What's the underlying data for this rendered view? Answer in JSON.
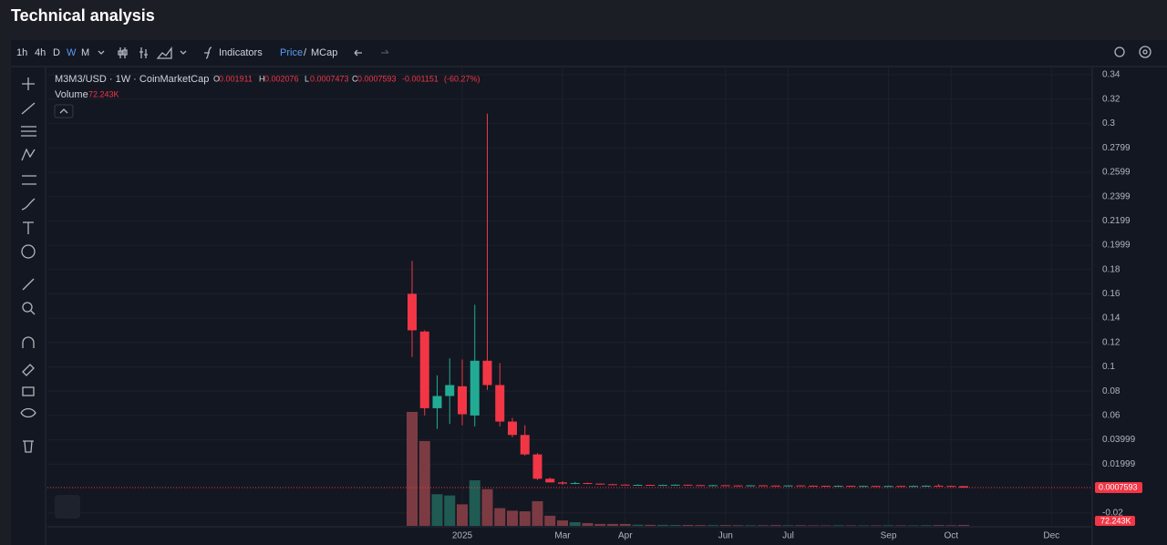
{
  "page_title": "Technical analysis",
  "toolbar": {
    "timeframes": [
      "1h",
      "4h",
      "D",
      "W",
      "M"
    ],
    "active_timeframe": 3,
    "indicators": "Indicators",
    "price": "Price",
    "separator": "/",
    "mcap": "MCap"
  },
  "chart_data": {
    "type": "candlestick",
    "symbol": "M3M3/USD · 1W · CoinMarketCap",
    "ohlc_labels": [
      "O",
      "H",
      "L",
      "C"
    ],
    "change": -0.001151,
    "change_pct": {
      "value": -60.27,
      "label": "(-60.27%)"
    },
    "volume_name": "Volume",
    "up_color": "#22ab94",
    "down_color": "#f23645",
    "volume_up_color": "#1f5b52",
    "volume_down_color": "#7c3b43",
    "categories": [
      null,
      null,
      null,
      null,
      "2025",
      null,
      null,
      null,
      null,
      null,
      null,
      null,
      "Mar",
      null,
      null,
      null,
      null,
      "Apr",
      null,
      null,
      null,
      null,
      null,
      null,
      null,
      "Jun",
      null,
      null,
      null,
      null,
      "Jul",
      null,
      null,
      null,
      null,
      null,
      null,
      null,
      "Sep",
      null,
      null,
      null,
      null,
      "Oct",
      null,
      null,
      null,
      null,
      null,
      null,
      null,
      "Dec",
      null,
      null
    ],
    "open": [
      0.16,
      0.129,
      0.066,
      0.076,
      0.084,
      0.06,
      0.105,
      0.085,
      0.055,
      0.044,
      0.028,
      0.008,
      0.005,
      0.004,
      0.0045,
      0.004,
      0.0035,
      0.0032,
      0.0028,
      0.003,
      0.0027,
      0.0029,
      0.0031,
      0.0028,
      0.0026,
      0.0027,
      0.0025,
      0.0024,
      0.0026,
      0.0024,
      0.0023,
      0.0025,
      0.0023,
      0.0022,
      0.0021,
      0.0022,
      0.002,
      0.0021,
      0.0019,
      0.0021,
      0.0019,
      0.0021,
      0.0023,
      0.0021,
      0.001911,
      null,
      null,
      null,
      null,
      null,
      null,
      null,
      null,
      null
    ],
    "high": [
      0.187,
      0.13,
      0.093,
      0.107,
      0.106,
      0.151,
      0.308,
      0.103,
      0.058,
      0.052,
      0.029,
      0.009,
      0.006,
      0.0055,
      0.0048,
      0.0042,
      0.0038,
      0.0034,
      0.0033,
      0.0031,
      0.0032,
      0.0034,
      0.0032,
      0.0029,
      0.003,
      0.0028,
      0.0027,
      0.0028,
      0.0027,
      0.0025,
      0.0027,
      0.0026,
      0.0024,
      0.0023,
      0.0024,
      0.0023,
      0.0023,
      0.0022,
      0.0023,
      0.0022,
      0.0024,
      0.0026,
      0.0035,
      0.0024,
      0.002076,
      null,
      null,
      null,
      null,
      null,
      null,
      null,
      null,
      null
    ],
    "low": [
      0.108,
      0.06,
      0.049,
      0.053,
      0.052,
      0.051,
      0.081,
      0.051,
      0.042,
      0.027,
      0.007,
      0.005,
      0.003,
      0.0035,
      0.0036,
      0.0032,
      0.003,
      0.0026,
      0.0026,
      0.0025,
      0.0025,
      0.0027,
      0.0026,
      0.0024,
      0.0024,
      0.0023,
      0.0022,
      0.0022,
      0.0022,
      0.0021,
      0.0021,
      0.0021,
      0.002,
      0.0019,
      0.0019,
      0.0018,
      0.0018,
      0.0017,
      0.0018,
      0.0018,
      0.0018,
      0.002,
      0.002,
      0.0018,
      0.0007473,
      null,
      null,
      null,
      null,
      null,
      null,
      null,
      null,
      null
    ],
    "close": [
      0.13,
      0.066,
      0.076,
      0.085,
      0.061,
      0.105,
      0.085,
      0.055,
      0.044,
      0.028,
      0.008,
      0.005,
      0.004,
      0.0045,
      0.004,
      0.0035,
      0.0032,
      0.0028,
      0.003,
      0.0027,
      0.0029,
      0.0031,
      0.0028,
      0.0026,
      0.0027,
      0.0025,
      0.0024,
      0.0026,
      0.0024,
      0.0023,
      0.0025,
      0.0023,
      0.0022,
      0.0021,
      0.0022,
      0.002,
      0.0021,
      0.0019,
      0.0021,
      0.0019,
      0.0021,
      0.0023,
      0.0021,
      0.001911,
      0.0007593,
      null,
      null,
      null,
      null,
      null,
      null,
      null,
      null,
      null
    ],
    "volume": [
      9000000,
      6700000,
      2500000,
      2400000,
      1700000,
      3600000,
      2900000,
      1400000,
      1200000,
      1150000,
      1950000,
      800000,
      430000,
      290000,
      220000,
      150000,
      150000,
      150000,
      90000,
      80000,
      80000,
      70000,
      70000,
      60000,
      60000,
      60000,
      50000,
      50000,
      50000,
      60000,
      50000,
      50000,
      40000,
      40000,
      50000,
      40000,
      40000,
      40000,
      50000,
      40000,
      40000,
      50000,
      60000,
      50000,
      72243,
      null,
      null,
      null,
      null,
      null,
      null,
      null,
      null,
      null
    ],
    "volume_labels": [
      null,
      null,
      null,
      null,
      null,
      null,
      null,
      null,
      null,
      null,
      null,
      null,
      null,
      null,
      null,
      null,
      null,
      null,
      null,
      null,
      null,
      null,
      null,
      null,
      null,
      null,
      null,
      null,
      null,
      null,
      null,
      null,
      null,
      null,
      null,
      null,
      null,
      null,
      null,
      null,
      null,
      null,
      null,
      null,
      "72.243K",
      null,
      null,
      null,
      null,
      null,
      null,
      null,
      null,
      null
    ],
    "ylim": [
      -0.0307,
      0.346
    ],
    "yticks": [
      0.34,
      0.32,
      0.3,
      0.2799,
      0.2599,
      0.2399,
      0.2199,
      0.1999,
      0.18,
      0.16,
      0.14,
      0.12,
      0.1,
      0.08,
      0.06,
      0.03999,
      0.01999,
      -0.02
    ],
    "grid": true
  }
}
